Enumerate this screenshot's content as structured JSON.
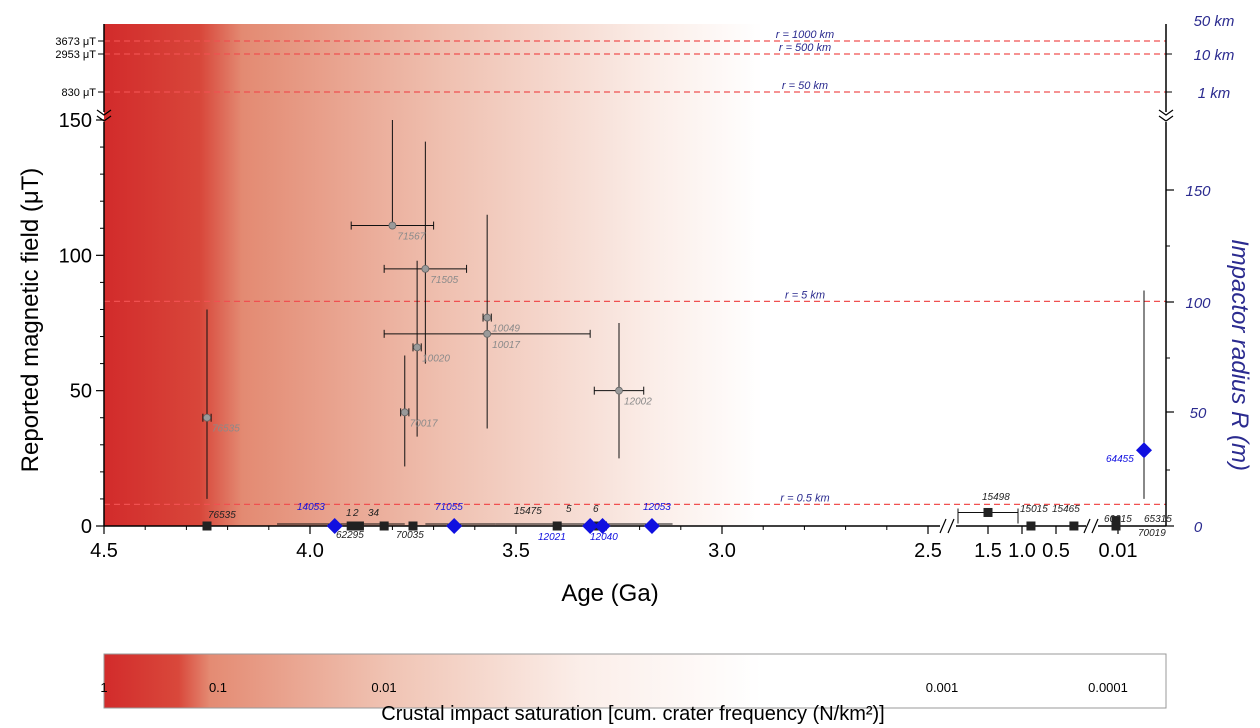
{
  "chart_data": {
    "type": "scatter",
    "xlabel": "Age (Ga)",
    "ylabel": "Reported magnetic field (μT)",
    "y2label": "Impactor radius R (m)",
    "colorbar_label": "Crustal impact saturation [cum. crater frequency (N/km²)]",
    "colorbar_ticks": [
      "1",
      "0.1",
      "0.01",
      "0.001",
      "0.0001"
    ],
    "x_ticks_main": [
      "4.5",
      "4.0",
      "3.5",
      "3.0",
      "2.5"
    ],
    "x_ticks_recent": [
      "1.5",
      "1.0",
      "0.5",
      "0.01"
    ],
    "y_ticks": [
      "0",
      "50",
      "100",
      "150"
    ],
    "y_break_ticks": [
      "830 μT",
      "2953 μT",
      "3673 μT"
    ],
    "y2_ticks": [
      "0",
      "50",
      "100",
      "150"
    ],
    "y2_break_ticks": [
      "1 km",
      "10 km",
      "50 km"
    ],
    "xlim_main": [
      4.5,
      2.4
    ],
    "ylim": [
      0,
      150
    ],
    "grid": false,
    "impactor_radius_lines": [
      {
        "label": "r = 0.5 km",
        "y": 8
      },
      {
        "label": "r = 5 km",
        "y": 83
      },
      {
        "label": "r = 50 km",
        "y": 830,
        "break": true
      },
      {
        "label": "r = 500 km",
        "y": 2953,
        "break": true
      },
      {
        "label": "r = 1000 km",
        "y": 3673,
        "break": true
      }
    ],
    "paleointensity_points": [
      {
        "sample": "71567",
        "age": 3.8,
        "field": 111,
        "xerr": 0.1,
        "yerr": [
          111,
          150
        ]
      },
      {
        "sample": "71505",
        "age": 3.72,
        "field": 95,
        "xerr": 0.1,
        "yerr": [
          60,
          142
        ]
      },
      {
        "sample": "10049",
        "age": 3.57,
        "field": 77,
        "xerr": 0.01,
        "yerr": [
          77,
          77
        ]
      },
      {
        "sample": "10017",
        "age": 3.57,
        "field": 71,
        "xerr": 0.25,
        "yerr": [
          36,
          115
        ]
      },
      {
        "sample": "10020",
        "age": 3.74,
        "field": 66,
        "xerr": 0.01,
        "yerr": [
          33,
          98
        ]
      },
      {
        "sample": "12002",
        "age": 3.25,
        "field": 50,
        "xerr": 0.06,
        "yerr": [
          25,
          75
        ]
      },
      {
        "sample": "70017",
        "age": 3.77,
        "field": 42,
        "xerr": 0.01,
        "yerr": [
          22,
          63
        ]
      },
      {
        "sample": "76535",
        "age": 4.25,
        "field": 40,
        "xerr": 0.01,
        "yerr": [
          10,
          80
        ]
      }
    ],
    "null_results_labels": [
      "76535",
      "62295",
      "1",
      "2",
      "34",
      "70035",
      "15475",
      "5",
      "6",
      "15498",
      "15015",
      "15465",
      "60215",
      "65315",
      "70019"
    ],
    "null_results_ages": [
      4.25,
      3.9,
      3.89,
      3.88,
      3.82,
      3.75,
      3.4,
      3.3,
      3.29,
      1.5,
      1.0,
      0.5,
      0.01,
      0.01,
      0.01
    ],
    "blue_samples": [
      {
        "sample": "14053",
        "age": 3.94,
        "field": 0
      },
      {
        "sample": "71055",
        "age": 3.65,
        "field": 0
      },
      {
        "sample": "12021",
        "age": 3.32,
        "field": 0
      },
      {
        "sample": "12040",
        "age": 3.29,
        "field": 0
      },
      {
        "sample": "12053",
        "age": 3.17,
        "field": 0
      },
      {
        "sample": "64455",
        "age": 0.002,
        "field": 28
      }
    ],
    "colors": {
      "saturation_dark": "#d22b2b",
      "marker_black": "#222222",
      "marker_gray": "#9a9a9a",
      "marker_blue": "#1010e0",
      "reference_line": "#f05050",
      "right_axis": "#2b2b8f"
    }
  }
}
